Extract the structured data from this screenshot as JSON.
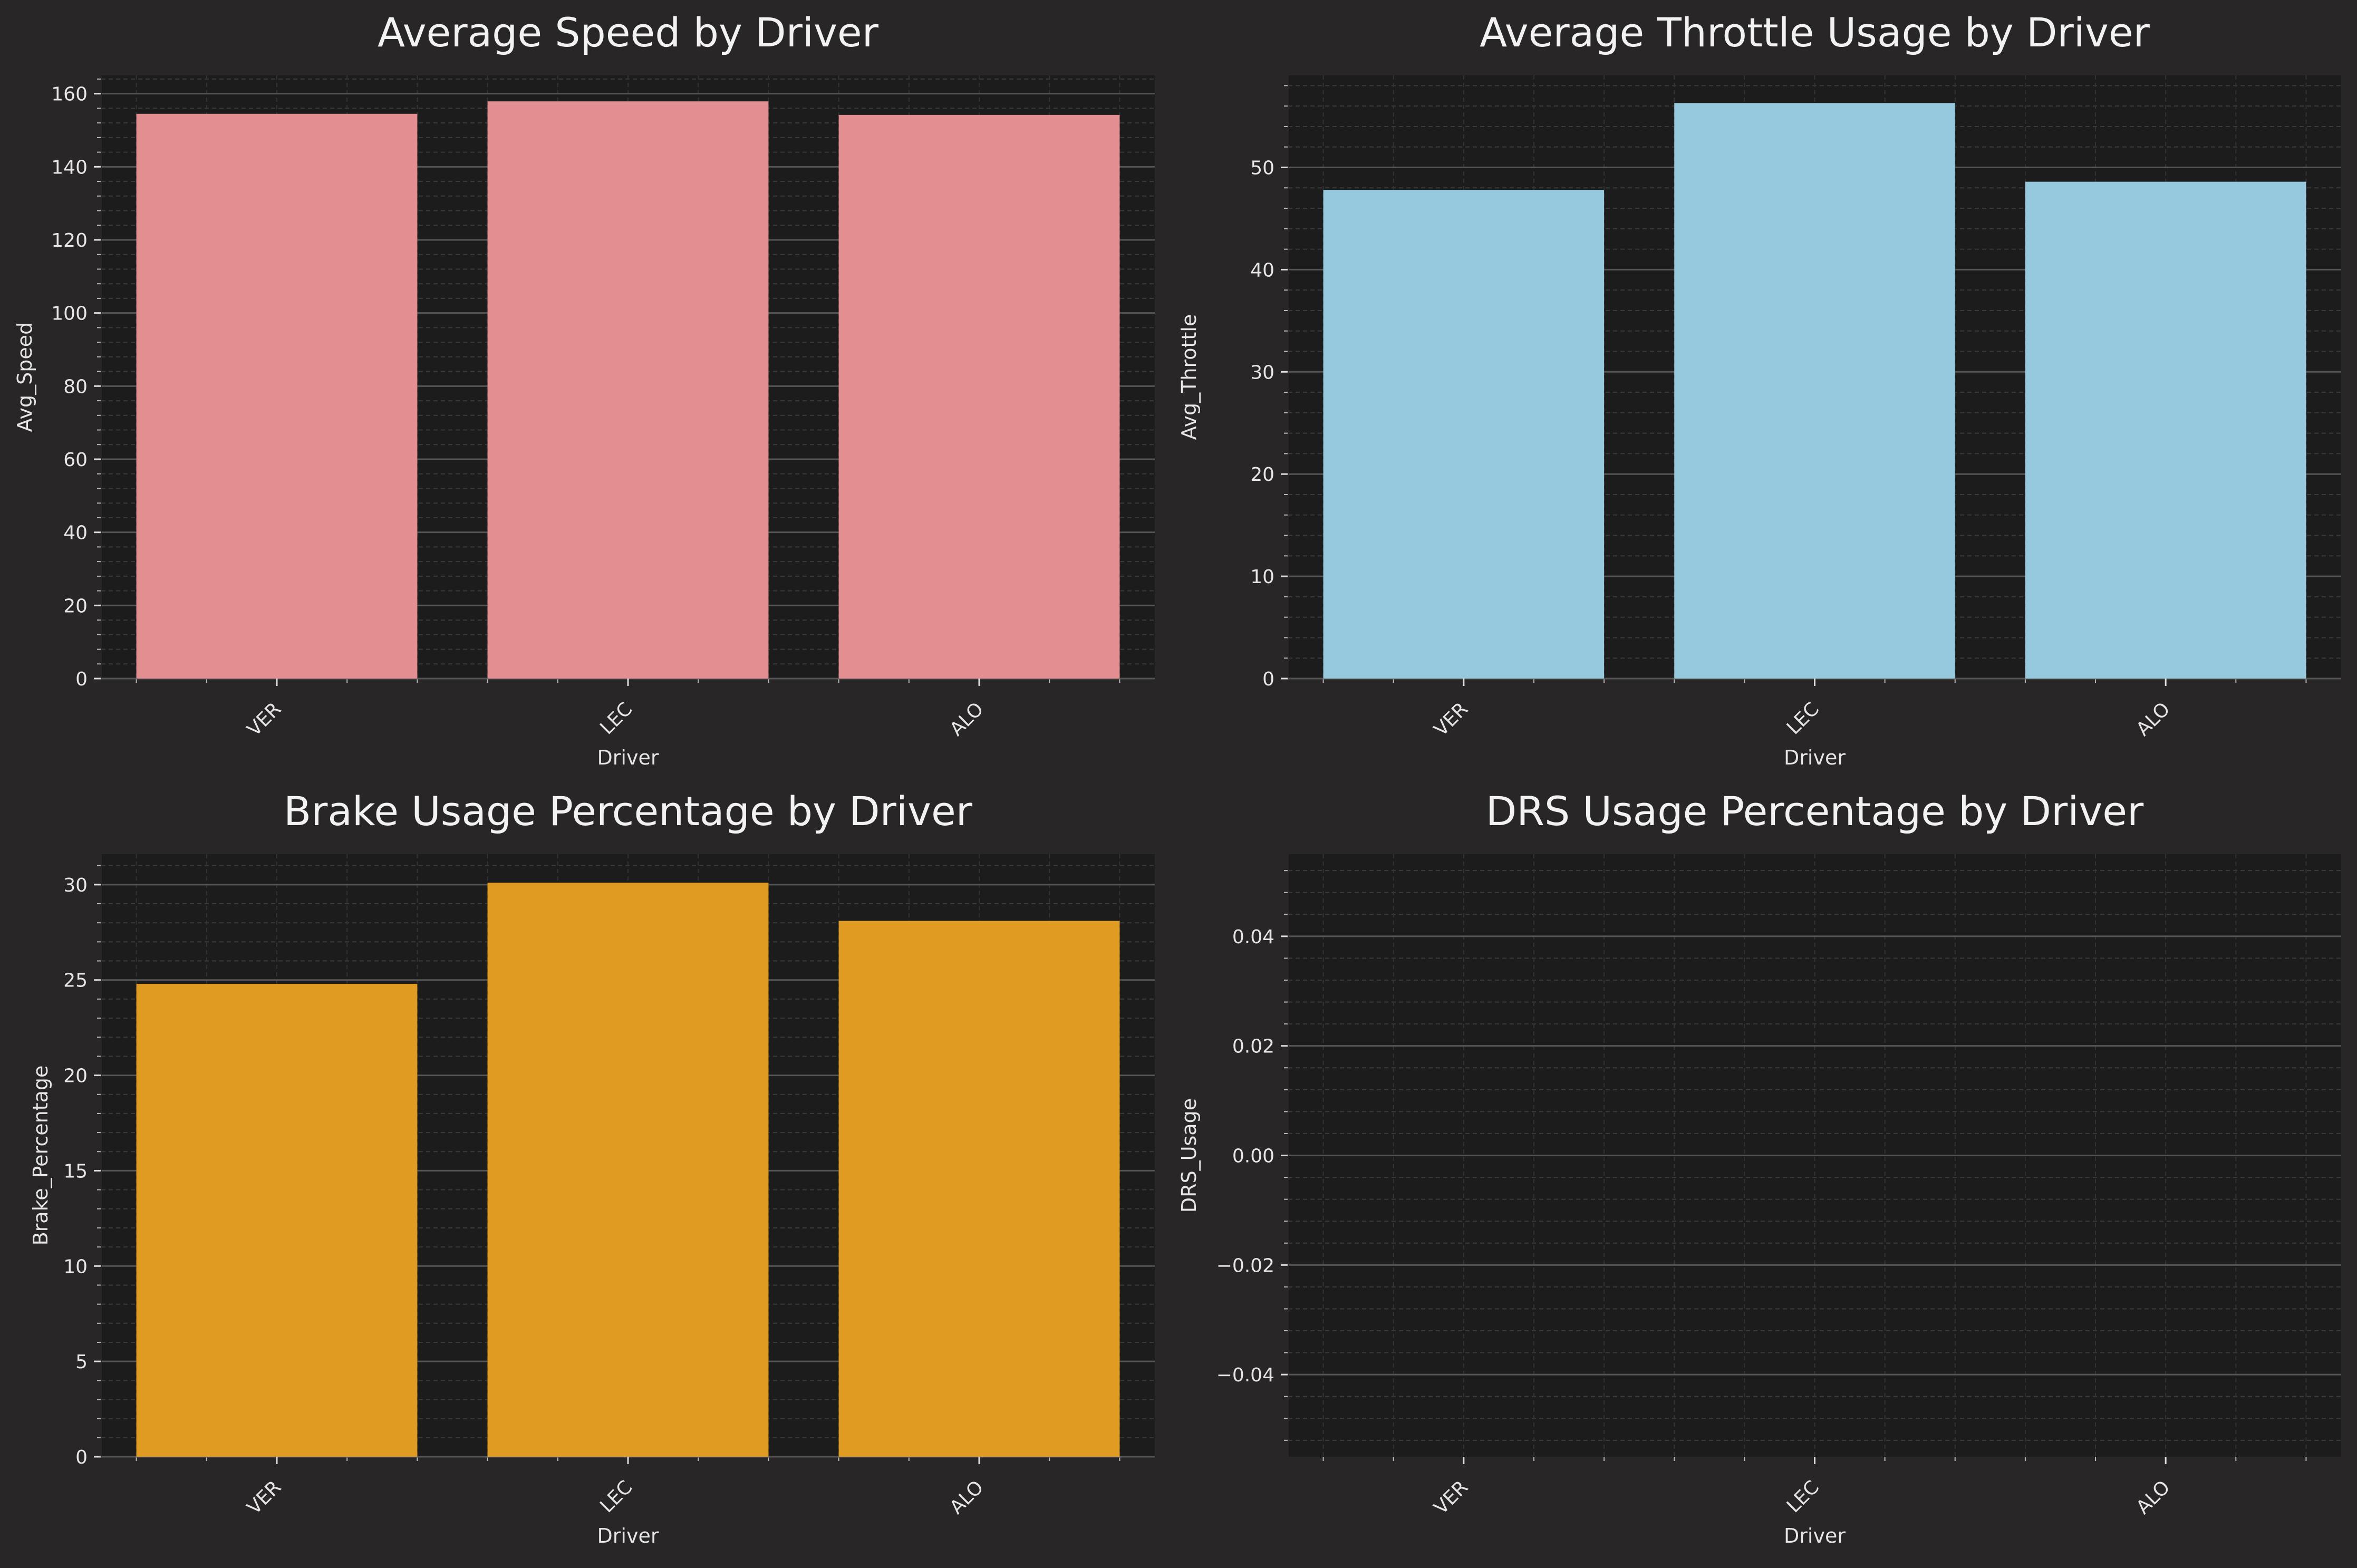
{
  "chart_data": [
    {
      "type": "bar",
      "title": "Average Speed by Driver",
      "xlabel": "Driver",
      "ylabel": "Avg_Speed",
      "categories": [
        "VER",
        "LEC",
        "ALO"
      ],
      "values": [
        154.5,
        157.9,
        154.2
      ],
      "ylim": [
        0,
        165
      ],
      "yticks": [
        0,
        20,
        40,
        60,
        80,
        100,
        120,
        140,
        160
      ],
      "ytick_labels": [
        "0",
        "20",
        "40",
        "60",
        "80",
        "100",
        "120",
        "140",
        "160"
      ],
      "color": "#E38E90",
      "grid": true
    },
    {
      "type": "bar",
      "title": "Average Throttle Usage by Driver",
      "xlabel": "Driver",
      "ylabel": "Avg_Throttle",
      "categories": [
        "VER",
        "LEC",
        "ALO"
      ],
      "values": [
        47.8,
        56.3,
        48.6
      ],
      "ylim": [
        0,
        59
      ],
      "yticks": [
        0,
        10,
        20,
        30,
        40,
        50
      ],
      "ytick_labels": [
        "0",
        "10",
        "20",
        "30",
        "40",
        "50"
      ],
      "color": "#96C8DE",
      "grid": true
    },
    {
      "type": "bar",
      "title": "Brake Usage Percentage by Driver",
      "xlabel": "Driver",
      "ylabel": "Brake_Percentage",
      "categories": [
        "VER",
        "LEC",
        "ALO"
      ],
      "values": [
        24.8,
        30.1,
        28.1
      ],
      "ylim": [
        0,
        31.6
      ],
      "yticks": [
        0,
        5,
        10,
        15,
        20,
        25,
        30
      ],
      "ytick_labels": [
        "0",
        "5",
        "10",
        "15",
        "20",
        "25",
        "30"
      ],
      "color": "#DF9B22",
      "grid": true
    },
    {
      "type": "bar",
      "title": "DRS Usage Percentage by Driver",
      "xlabel": "Driver",
      "ylabel": "DRS_Usage",
      "categories": [
        "VER",
        "LEC",
        "ALO"
      ],
      "values": [
        0,
        0,
        0
      ],
      "ylim": [
        -0.055,
        0.055
      ],
      "yticks": [
        -0.04,
        -0.02,
        0,
        0.02,
        0.04
      ],
      "ytick_labels": [
        "−0.04",
        "−0.02",
        "0.00",
        "0.02",
        "0.04"
      ],
      "color": "#DF9B22",
      "grid": true
    }
  ]
}
